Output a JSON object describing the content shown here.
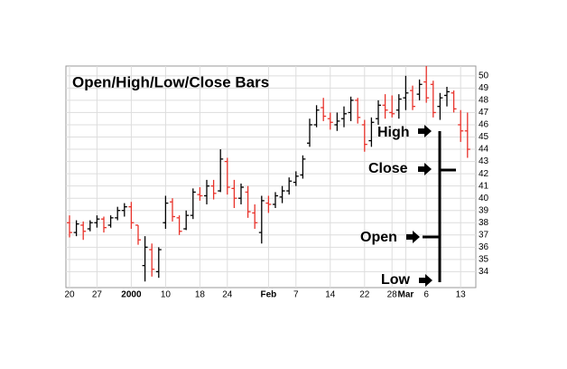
{
  "chart_data": {
    "type": "ohlc",
    "title": "Open/High/Low/Close Bars",
    "categories": [
      "20",
      null,
      null,
      null,
      "27",
      null,
      null,
      null,
      null,
      "2000",
      null,
      null,
      null,
      null,
      "10",
      null,
      null,
      null,
      null,
      "18",
      null,
      null,
      null,
      "24",
      null,
      null,
      null,
      null,
      null,
      "Feb",
      null,
      null,
      null,
      "7",
      null,
      null,
      null,
      null,
      "14",
      null,
      null,
      null,
      null,
      "22",
      null,
      null,
      null,
      "28",
      null,
      "Mar",
      null,
      null,
      "6",
      null,
      null,
      null,
      null,
      "13",
      null
    ],
    "open": [
      38,
      37.2,
      37.8,
      37.5,
      38,
      38.3,
      37.8,
      38.4,
      39,
      39.3,
      37.8,
      34.5,
      35.8,
      34,
      38,
      39.7,
      38.4,
      37.5,
      38.6,
      40.3,
      40.2,
      41,
      40.6,
      43,
      40.8,
      40,
      40.5,
      38.8,
      37.2,
      39.6,
      39.5,
      40.1,
      40.6,
      41.3,
      41.9,
      44.5,
      46,
      47.4,
      46.5,
      46,
      46.5,
      47,
      48,
      46,
      44.7,
      46.5,
      47.6,
      47,
      47.2,
      48.2,
      48.8,
      48.5,
      49.5,
      49.3,
      47.5,
      48.4,
      48.6,
      46,
      45.5
    ],
    "high": [
      38.6,
      38.2,
      38.1,
      38.2,
      38.6,
      38.5,
      38.6,
      39.3,
      39.6,
      39.7,
      37.8,
      36.9,
      36.3,
      36,
      40.2,
      40,
      38.6,
      39,
      40.8,
      40.9,
      41.5,
      41.5,
      44,
      43.3,
      41.5,
      41.2,
      41,
      39.5,
      40.2,
      40.2,
      40.5,
      41,
      41.7,
      42.2,
      43.5,
      46.5,
      47.6,
      48.2,
      47,
      47,
      47.5,
      48.3,
      48.2,
      46.4,
      46.6,
      48,
      48.5,
      48.4,
      48.5,
      50,
      49.2,
      49.7,
      50.8,
      49.6,
      48.6,
      49.1,
      48.8,
      47.2,
      47
    ],
    "low": [
      36.8,
      36.9,
      36.6,
      37.3,
      37.6,
      37.2,
      37.6,
      38.2,
      38.5,
      37.5,
      36.2,
      33.2,
      33.6,
      33.5,
      37.5,
      38.1,
      37,
      37.4,
      38.3,
      39.8,
      39.5,
      39.9,
      40.5,
      40.3,
      39.2,
      39.5,
      38.4,
      37.5,
      36.3,
      38.8,
      39.2,
      39.6,
      40.3,
      41,
      41.6,
      44.2,
      45.8,
      46.3,
      45.6,
      45.5,
      45.8,
      46.3,
      46.1,
      43.8,
      44.2,
      46,
      46.5,
      46.6,
      46.5,
      47.2,
      47.2,
      48,
      47.8,
      46.6,
      46.4,
      47.5,
      47,
      44.6,
      43.3
    ],
    "close": [
      37.2,
      37.9,
      37.3,
      38,
      38.3,
      37.6,
      38.4,
      39,
      39.3,
      38,
      36.6,
      36,
      34.2,
      35.8,
      39.6,
      38.5,
      37.3,
      38.6,
      40.5,
      40.2,
      41,
      40.4,
      43.2,
      40.9,
      40,
      40.9,
      38.9,
      38,
      39.8,
      39.5,
      40.2,
      40.6,
      41.4,
      41.8,
      43.2,
      46,
      47.2,
      46.7,
      46.2,
      46.3,
      46.9,
      48,
      46.6,
      44.4,
      46.2,
      47.6,
      47.2,
      46.9,
      48.1,
      48.6,
      47.5,
      49.3,
      48.2,
      47,
      48.2,
      48.7,
      47.3,
      45.5,
      44
    ],
    "up_color": "#000000",
    "down_color": "#e8322a",
    "ylim": [
      32.7,
      50.8
    ],
    "yticks": [
      34,
      35,
      36,
      37,
      38,
      39,
      40,
      41,
      42,
      43,
      44,
      45,
      46,
      47,
      48,
      49,
      50
    ],
    "grid": true,
    "annotations": [
      "High",
      "Close",
      "Open",
      "Low"
    ]
  }
}
